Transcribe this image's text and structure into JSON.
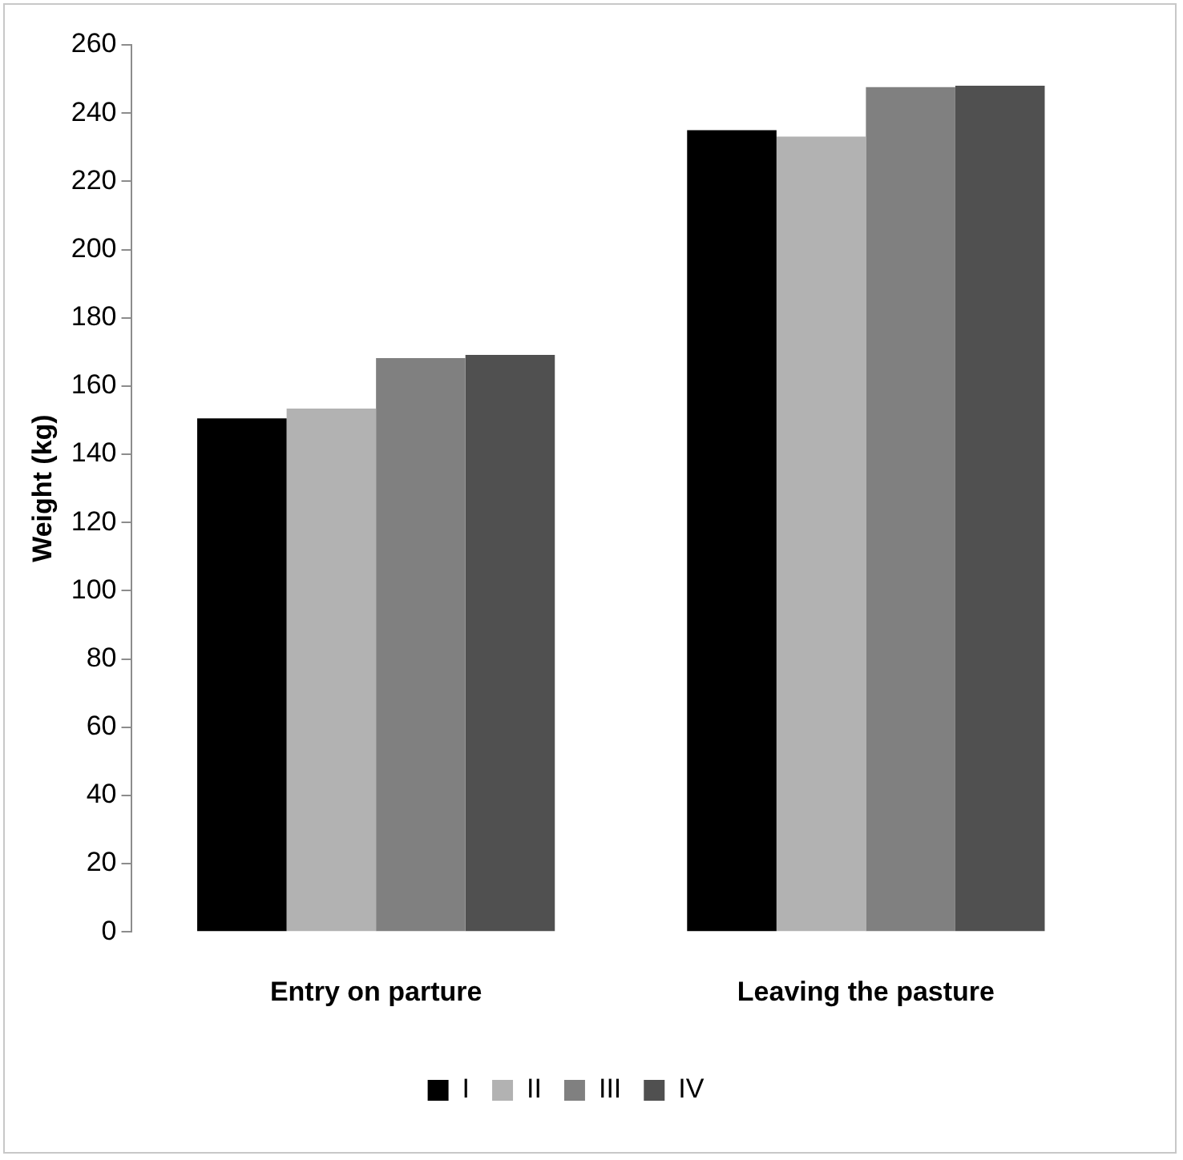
{
  "chart_data": {
    "type": "bar",
    "ylabel": "Weight (kg)",
    "categories": [
      "Entry on parture",
      "Leaving the pasture"
    ],
    "series": [
      {
        "name": "I",
        "color": "#000000",
        "values": [
          150.5,
          235
        ]
      },
      {
        "name": "II",
        "color": "#b2b2b2",
        "values": [
          153.4,
          233.1
        ]
      },
      {
        "name": "III",
        "color": "#808080",
        "values": [
          168.2,
          247.6
        ]
      },
      {
        "name": "IV",
        "color": "#505050",
        "values": [
          169.1,
          248
        ]
      }
    ],
    "ylim": [
      0,
      260
    ],
    "yticks": [
      0,
      20,
      40,
      60,
      80,
      100,
      120,
      140,
      160,
      180,
      200,
      220,
      240,
      260
    ],
    "grid": false,
    "legend": "bottom"
  }
}
